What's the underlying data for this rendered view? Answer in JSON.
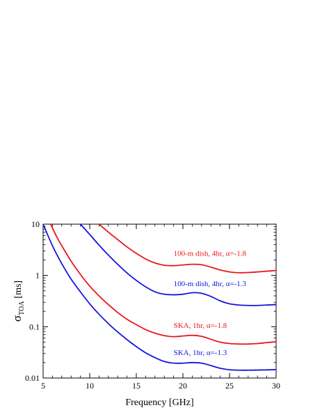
{
  "chart_data": {
    "type": "line",
    "title": "",
    "xlabel": "Frequency [GHz]",
    "ylabel_main": "σ",
    "ylabel_sub": "TOA",
    "ylabel_unit": "[ms]",
    "xlim": [
      5,
      30
    ],
    "ylim": [
      0.01,
      10
    ],
    "yscale": "log",
    "grid": false,
    "x_ticks": [
      5,
      10,
      15,
      20,
      25,
      30
    ],
    "x_tick_labels": [
      "5",
      "10",
      "15",
      "20",
      "25",
      "30"
    ],
    "y_ticks": [
      0.01,
      0.1,
      1,
      10
    ],
    "y_tick_labels": [
      "0.01",
      "0.1",
      "1",
      "10"
    ],
    "series": [
      {
        "name": "100-m dish, 4hr, α=-1.8",
        "color": "#e8161c",
        "x": [
          11.0,
          12,
          13,
          14,
          15,
          16,
          17,
          18,
          19,
          20,
          21,
          22,
          23,
          24,
          25,
          26,
          27,
          28,
          29,
          30
        ],
        "y": [
          10.0,
          7.0,
          5.0,
          3.6,
          2.7,
          2.1,
          1.75,
          1.58,
          1.55,
          1.6,
          1.65,
          1.62,
          1.45,
          1.28,
          1.17,
          1.13,
          1.14,
          1.17,
          1.21,
          1.25
        ]
      },
      {
        "name": "100-m dish, 4hr, α=-1.3",
        "color": "#1414e0",
        "x": [
          9.0,
          10,
          11,
          12,
          13,
          14,
          15,
          16,
          17,
          18,
          19,
          20,
          21,
          22,
          23,
          24,
          25,
          26,
          27,
          28,
          29,
          30
        ],
        "y": [
          10.0,
          6.3,
          3.9,
          2.5,
          1.65,
          1.12,
          0.8,
          0.6,
          0.48,
          0.43,
          0.42,
          0.43,
          0.46,
          0.45,
          0.39,
          0.32,
          0.28,
          0.265,
          0.26,
          0.26,
          0.265,
          0.27
        ]
      },
      {
        "name": "SKA, 1hr, α=-1.8",
        "color": "#e8161c",
        "x": [
          5.8,
          6.5,
          7,
          8,
          9,
          10,
          11,
          12,
          13,
          14,
          15,
          16,
          17,
          18,
          19,
          20,
          21,
          22,
          23,
          24,
          25,
          26,
          27,
          28,
          29,
          30
        ],
        "y": [
          10.0,
          5.5,
          3.8,
          1.9,
          1.05,
          0.62,
          0.4,
          0.27,
          0.19,
          0.14,
          0.11,
          0.088,
          0.075,
          0.067,
          0.064,
          0.066,
          0.068,
          0.065,
          0.057,
          0.05,
          0.047,
          0.046,
          0.046,
          0.047,
          0.049,
          0.051
        ]
      },
      {
        "name": "SKA, 1hr, α=-1.3",
        "color": "#1414e0",
        "x": [
          5.0,
          6,
          7,
          8,
          9,
          10,
          11,
          12,
          13,
          14,
          15,
          16,
          17,
          18,
          19,
          20,
          21,
          22,
          23,
          24,
          25,
          26,
          27,
          28,
          29,
          30
        ],
        "y": [
          10.0,
          3.8,
          1.7,
          0.85,
          0.48,
          0.28,
          0.175,
          0.115,
          0.079,
          0.056,
          0.041,
          0.031,
          0.025,
          0.021,
          0.0195,
          0.0195,
          0.02,
          0.0195,
          0.0175,
          0.0155,
          0.0145,
          0.0142,
          0.0142,
          0.0143,
          0.0144,
          0.0146
        ]
      }
    ],
    "annotations": [
      {
        "text": "100-m dish, 4hr, α=-1.8",
        "color": "#e8161c",
        "x": 19.0,
        "y": 2.4
      },
      {
        "text": "100-m dish, 4hr, α=-1.3",
        "color": "#1414e0",
        "x": 19.0,
        "y": 0.62
      },
      {
        "text": "SKA, 1hr, α=-1.8",
        "color": "#e8161c",
        "x": 19.0,
        "y": 0.095
      },
      {
        "text": "SKA, 1hr, α=-1.3",
        "color": "#1414e0",
        "x": 19.0,
        "y": 0.028
      }
    ]
  }
}
